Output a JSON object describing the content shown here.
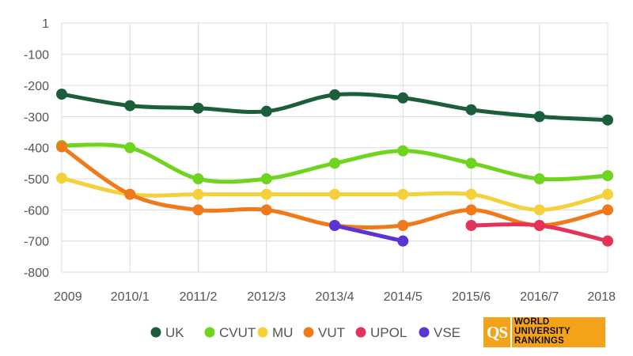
{
  "chart_data": {
    "type": "line",
    "categories": [
      "2009",
      "2010/1",
      "2011/2",
      "2012/3",
      "2013/4",
      "2014/5",
      "2015/6",
      "2016/7",
      "2018"
    ],
    "y_ticks": [
      1,
      -100,
      -200,
      -300,
      -400,
      -500,
      -600,
      -700,
      -800
    ],
    "ylim": [
      -800,
      1
    ],
    "grid": "horizontal",
    "legend_position": "bottom",
    "series": [
      {
        "name": "UK",
        "color": "#1b5e3b",
        "values": [
          -228,
          -265,
          -273,
          -283,
          -230,
          -240,
          -278,
          -300,
          -311
        ]
      },
      {
        "name": "CVUT",
        "color": "#6fd41e",
        "values": [
          -393,
          -400,
          -500,
          -500,
          -450,
          -410,
          -450,
          -500,
          -490
        ]
      },
      {
        "name": "MU",
        "color": "#f4d03a",
        "values": [
          -498,
          -550,
          -550,
          -550,
          -550,
          -550,
          -550,
          -600,
          -550
        ]
      },
      {
        "name": "VUT",
        "color": "#f07a1a",
        "values": [
          -397,
          -550,
          -600,
          -600,
          -650,
          -650,
          -600,
          -650,
          -600
        ]
      },
      {
        "name": "UPOL",
        "color": "#e5325a",
        "values": [
          null,
          null,
          null,
          null,
          null,
          null,
          -650,
          -650,
          -700
        ]
      },
      {
        "name": "VSE",
        "color": "#5a35d4",
        "values": [
          null,
          null,
          null,
          null,
          -650,
          -700,
          null,
          null,
          null
        ]
      }
    ]
  },
  "logo": {
    "mark": "QS",
    "lines": [
      "WORLD",
      "UNIVERSITY",
      "RANKINGS"
    ]
  }
}
